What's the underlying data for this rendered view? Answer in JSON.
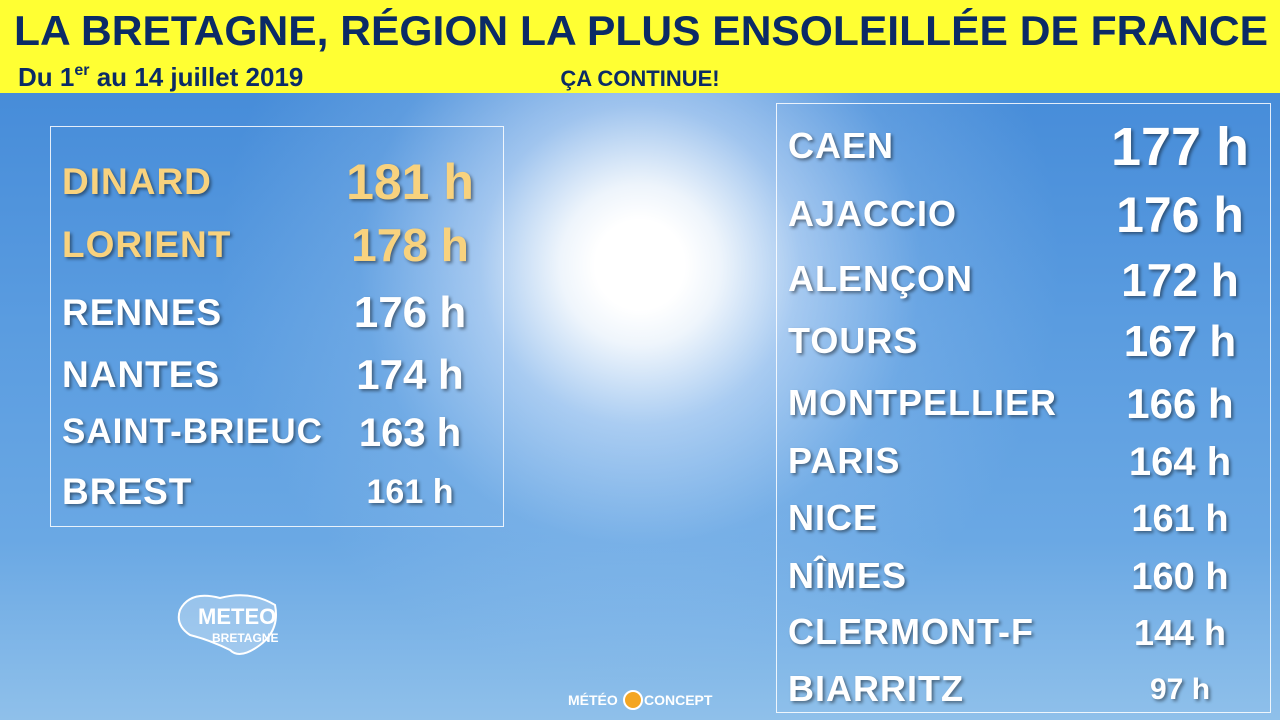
{
  "header": {
    "title": "LA BRETAGNE, RÉGION LA PLUS ENSOLEILLÉE DE FRANCE",
    "subtitle": {
      "before": "Du 1",
      "superscript": "er",
      "after": " au 14 juillet 2019"
    },
    "tagline": "ÇA CONTINUE!"
  },
  "bretagne": [
    {
      "city": "DINARD",
      "hours": "181 h"
    },
    {
      "city": "LORIENT",
      "hours": "178 h"
    },
    {
      "city": "RENNES",
      "hours": "176 h"
    },
    {
      "city": "NANTES",
      "hours": "174 h"
    },
    {
      "city": "SAINT-BRIEUC",
      "hours": "163 h"
    },
    {
      "city": "BREST",
      "hours": "161 h"
    }
  ],
  "france": [
    {
      "city": "CAEN",
      "hours": "177 h"
    },
    {
      "city": "AJACCIO",
      "hours": "176 h"
    },
    {
      "city": "ALENÇON",
      "hours": "172 h"
    },
    {
      "city": "TOURS",
      "hours": "167 h"
    },
    {
      "city": "MONTPELLIER",
      "hours": "166 h"
    },
    {
      "city": "PARIS",
      "hours": "164 h"
    },
    {
      "city": "NICE",
      "hours": "161 h"
    },
    {
      "city": "NÎMES",
      "hours": "160 h"
    },
    {
      "city": "CLERMONT-F",
      "hours": "144 h"
    },
    {
      "city": "BIARRITZ",
      "hours": "97 h"
    }
  ],
  "logos": {
    "meteo": "METEO",
    "bretagne": "BRETAGNE",
    "concept_left": "MÉTÉO",
    "concept_right": "CONCEPT"
  }
}
